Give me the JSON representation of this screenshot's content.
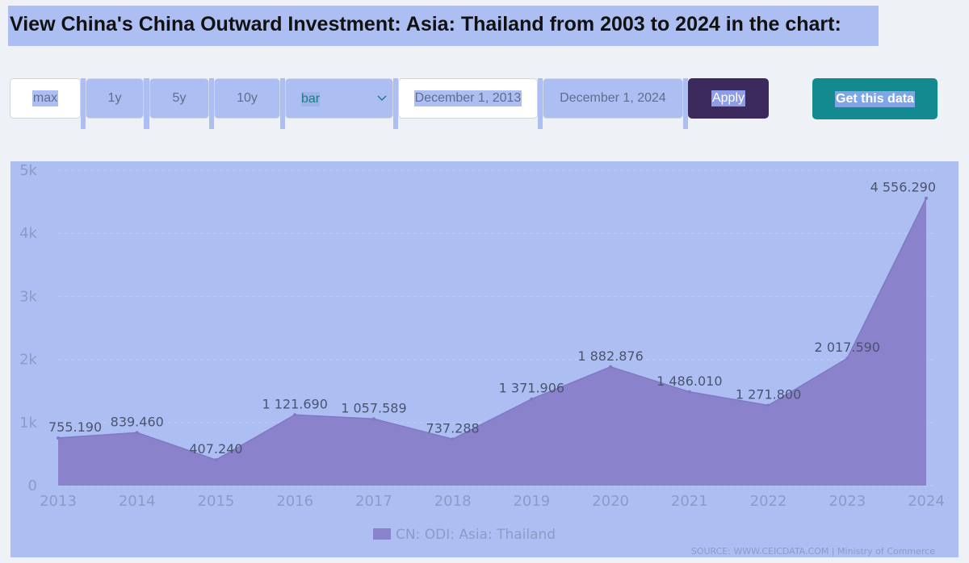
{
  "header": {
    "title": "View China's China Outward Investment: Asia: Thailand from 2003 to 2024 in the chart:"
  },
  "controls": {
    "range_buttons": [
      "max",
      "1y",
      "5y",
      "10y"
    ],
    "chart_type": "bar",
    "start_date": "December 1, 2013",
    "end_date": "December 1, 2024",
    "apply_label": "Apply",
    "get_data_label": "Get this data"
  },
  "chart_data": {
    "type": "area",
    "x": [
      "2013",
      "2014",
      "2015",
      "2016",
      "2017",
      "2018",
      "2019",
      "2020",
      "2021",
      "2022",
      "2023",
      "2024"
    ],
    "series": [
      {
        "name": "CN: ODI: Asia: Thailand",
        "values": [
          755.19,
          839.46,
          407.24,
          1121.69,
          1057.589,
          737.288,
          1371.906,
          1882.876,
          1486.01,
          1271.8,
          2017.59,
          4556.29
        ],
        "labels": [
          "755.190",
          "839.460",
          "407.240",
          "1 121.690",
          "1 057.589",
          "737.288",
          "1 371.906",
          "1 882.876",
          "1 486.010",
          "1 271.800",
          "2 017.590",
          "4 556.290"
        ]
      }
    ],
    "yticks": [
      "0",
      "1k",
      "2k",
      "3k",
      "4k",
      "5k"
    ],
    "ylim": [
      0,
      5000
    ],
    "grid": true,
    "legend": "bottom-center",
    "source": "SOURCE: WWW.CEICDATA.COM | Ministry of Commerce",
    "colors": {
      "area_fill": "#8a82cb",
      "line": "#8078c4",
      "panel": "#adbff2"
    }
  }
}
